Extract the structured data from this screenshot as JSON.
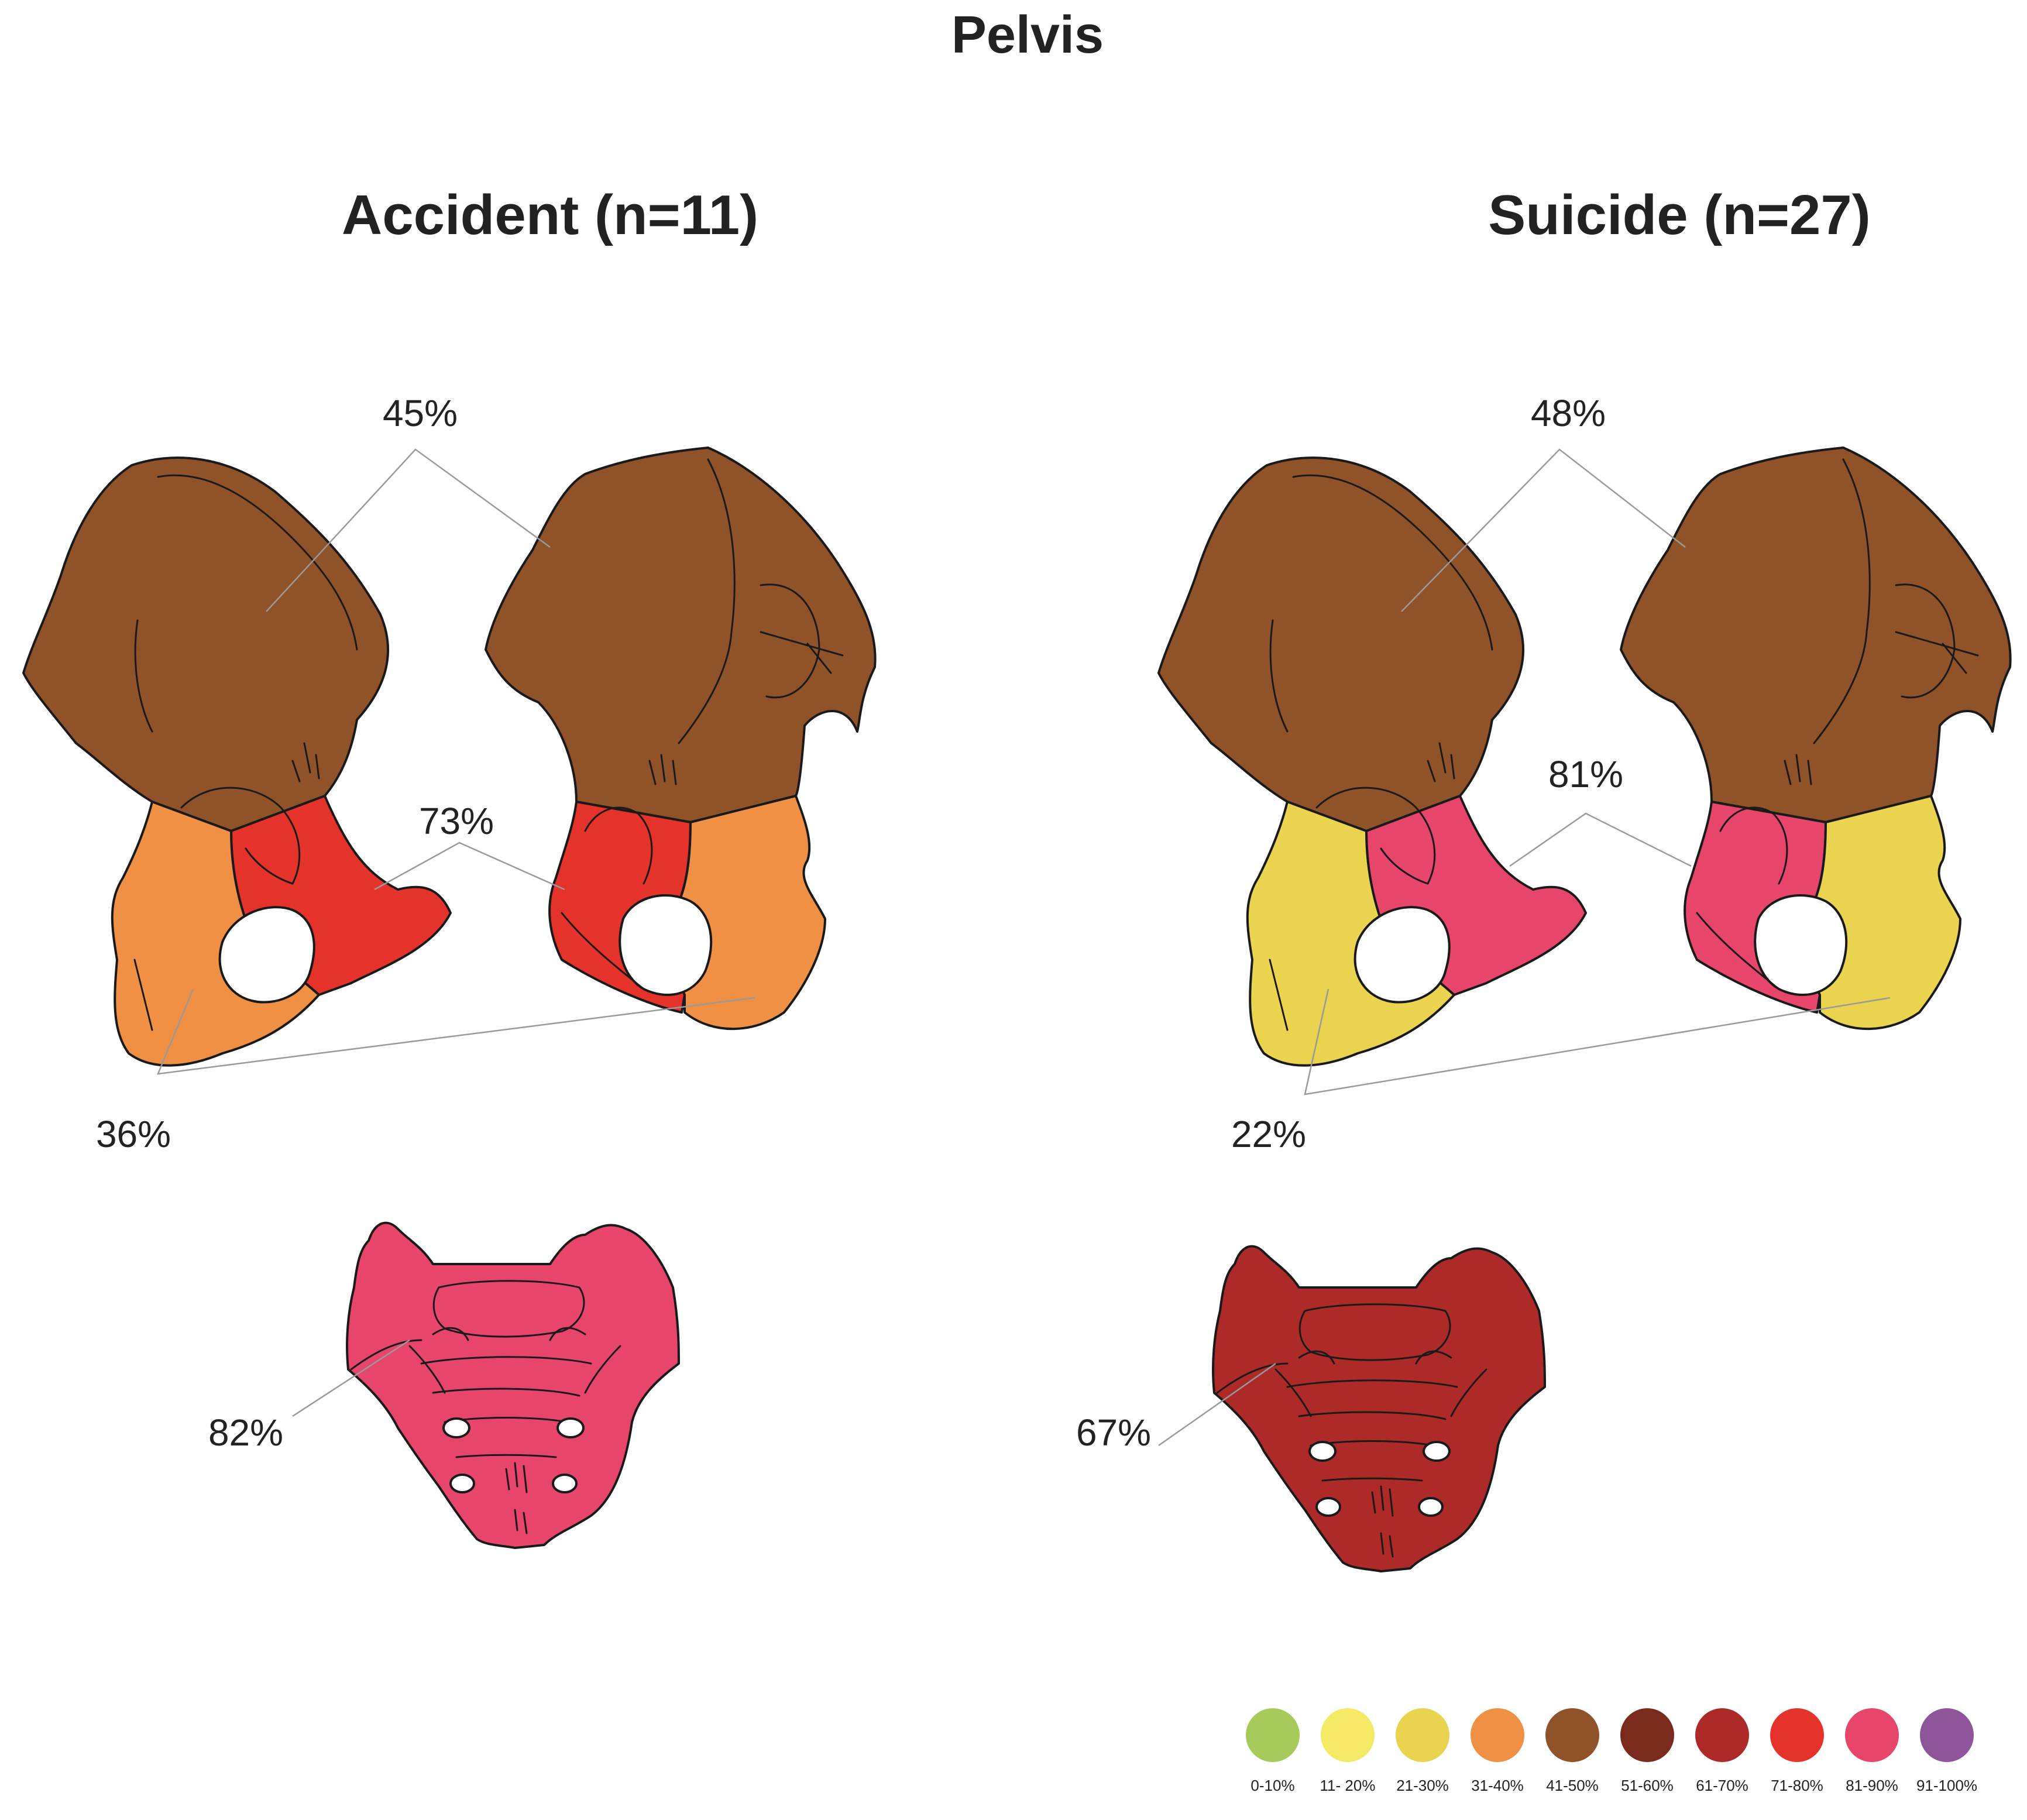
{
  "title": "Pelvis",
  "panels": [
    {
      "heading": "Accident (n=11)",
      "ilium_pct": "45%",
      "pubis_pct": "73%",
      "ischium_pct": "36%",
      "sacrum_pct": "82%",
      "colors": {
        "ilium": "#8f5229",
        "pubis": "#e5322a",
        "ischium": "#ef9044",
        "sacrum": "#e8456a"
      }
    },
    {
      "heading": "Suicide (n=27)",
      "ilium_pct": "48%",
      "pubis_pct": "81%",
      "ischium_pct": "22%",
      "sacrum_pct": "67%",
      "colors": {
        "ilium": "#8f5229",
        "pubis": "#e8456a",
        "ischium": "#e9d34f",
        "sacrum": "#ad2a28"
      }
    }
  ],
  "legend": [
    {
      "label": "0-10%",
      "color": "#a7cb5b"
    },
    {
      "label": "11- 20%",
      "color": "#f4e965"
    },
    {
      "label": "21-30%",
      "color": "#e9d34f"
    },
    {
      "label": "31-40%",
      "color": "#ef9044"
    },
    {
      "label": "41-50%",
      "color": "#8f5229"
    },
    {
      "label": "51-60%",
      "color": "#7b2a1e"
    },
    {
      "label": "61-70%",
      "color": "#ad2a28"
    },
    {
      "label": "71-80%",
      "color": "#e5322a"
    },
    {
      "label": "81-90%",
      "color": "#e8456a"
    },
    {
      "label": "91-100%",
      "color": "#8e559b"
    }
  ]
}
